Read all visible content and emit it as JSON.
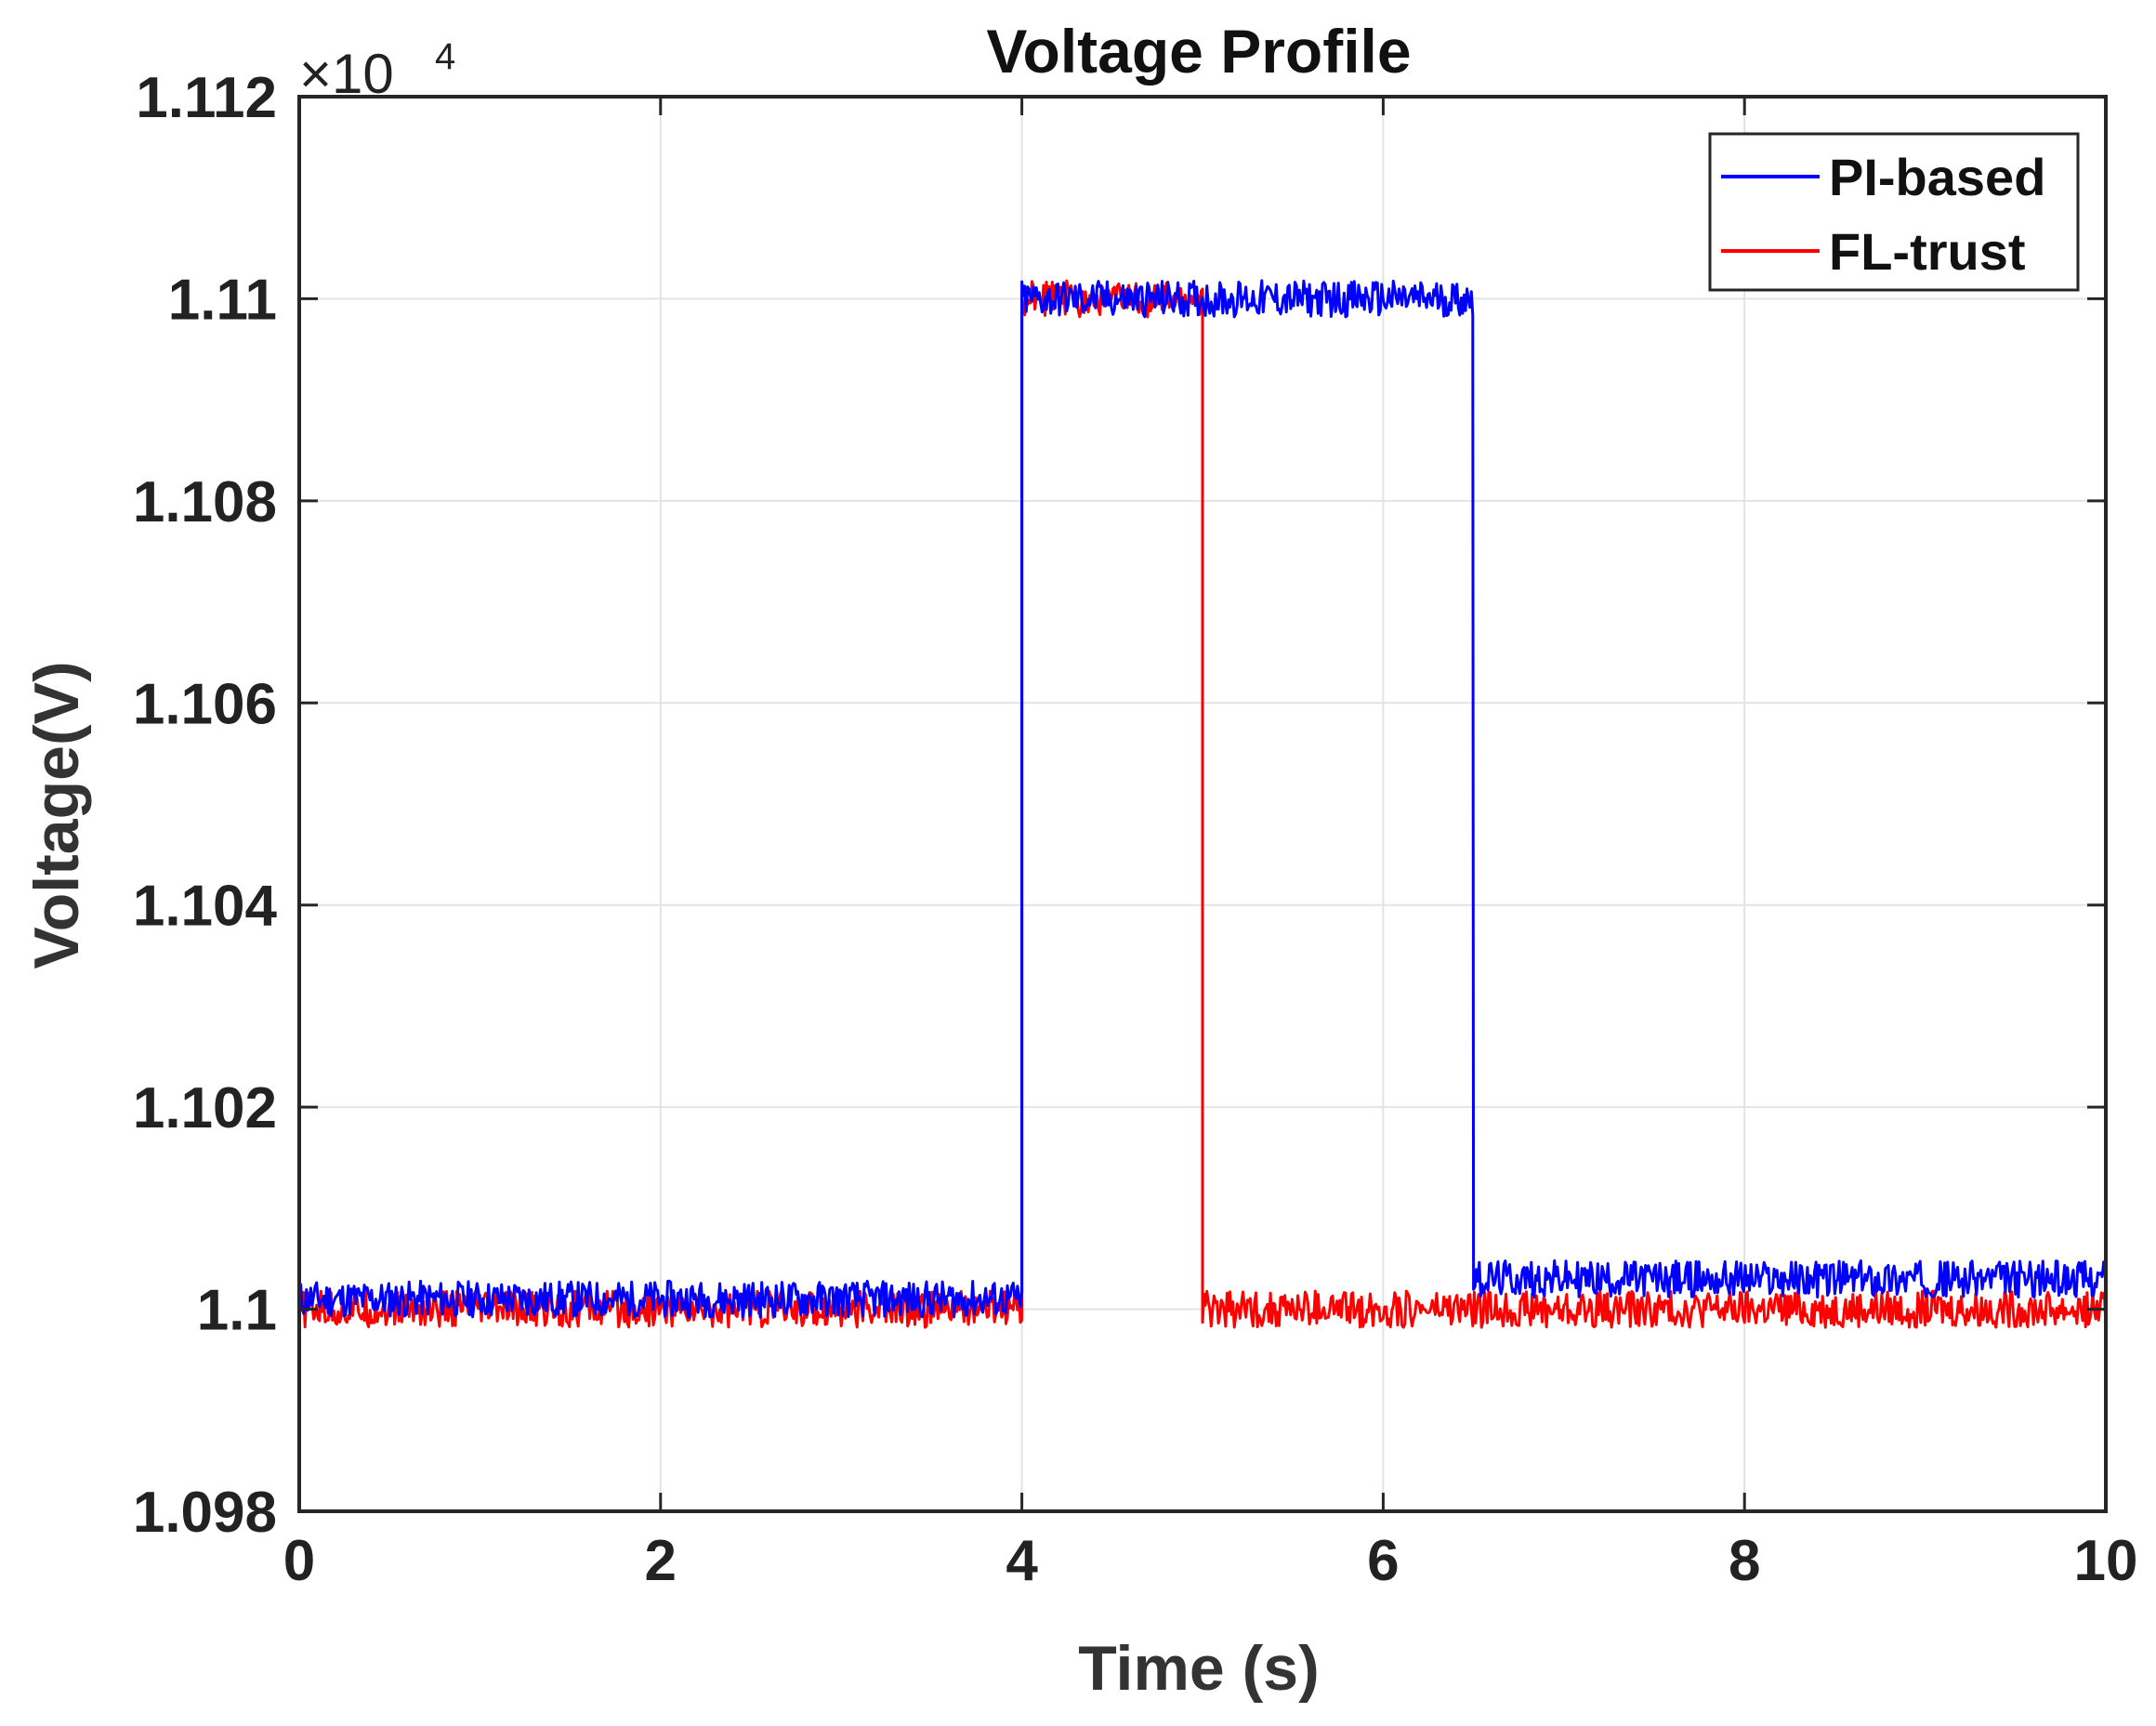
{
  "chart_data": {
    "type": "line",
    "title": "Voltage Profile",
    "xlabel": "Time (s)",
    "ylabel": "Voltage(V)",
    "y_multiplier_base": "×10",
    "y_multiplier_exp": "4",
    "xlim": [
      0,
      10
    ],
    "ylim": [
      1.098,
      1.112
    ],
    "xticks": [
      0,
      2,
      4,
      6,
      8,
      10
    ],
    "xtick_labels": [
      "0",
      "2",
      "4",
      "6",
      "8",
      "10"
    ],
    "yticks": [
      1.098,
      1.1,
      1.102,
      1.104,
      1.106,
      1.108,
      1.11,
      1.112
    ],
    "ytick_labels": [
      "1.098",
      "1.1",
      "1.102",
      "1.104",
      "1.106",
      "1.108",
      "1.11",
      "1.112"
    ],
    "grid": true,
    "legend_position": "top-right",
    "series": [
      {
        "name": "PI-based",
        "color": "#0000ff",
        "segments": [
          {
            "x_start": 0,
            "x_end": 4,
            "y": 1.1001,
            "noise": 0.00018
          },
          {
            "x_start": 4,
            "x_end": 6.5,
            "y": 1.11,
            "noise": 0.00018
          },
          {
            "x_start": 6.5,
            "x_end": 10,
            "y": 1.1003,
            "noise": 0.00018
          }
        ]
      },
      {
        "name": "FL-trust",
        "color": "#ff0000",
        "segments": [
          {
            "x_start": 0,
            "x_end": 4,
            "y": 1.1,
            "noise": 0.00018
          },
          {
            "x_start": 4,
            "x_end": 5,
            "y": 1.11,
            "noise": 0.00018
          },
          {
            "x_start": 5,
            "x_end": 10,
            "y": 1.1,
            "noise": 0.00018
          }
        ]
      }
    ]
  }
}
